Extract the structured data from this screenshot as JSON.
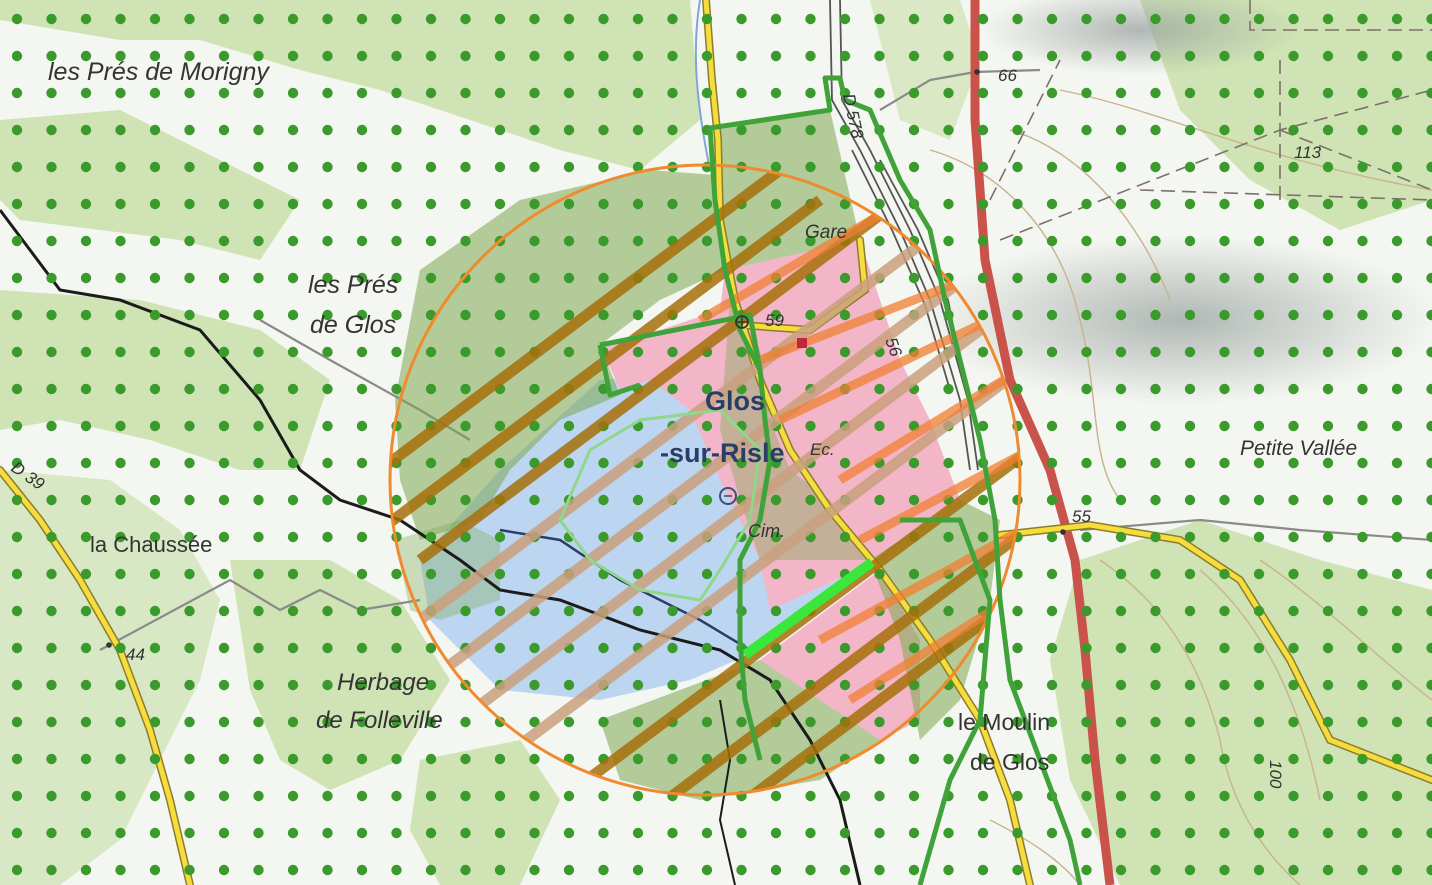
{
  "map": {
    "colors": {
      "background": "#f4f6f1",
      "forest": "#cfe3b4",
      "water_area": "#bcd6f2",
      "dot": "#3a9a2c",
      "zone_green": "#7ca84f",
      "zone_pink": "#f3b6c9",
      "circle_stroke": "#ef8a2e",
      "hatch_orange": "#f07f32",
      "hatch_brown": "#a6700b",
      "hatch_tan": "#c9a07e",
      "green_outline": "#3fa33a",
      "road_red": "#c9534a",
      "road_yellow": "#f6dc3c",
      "river": "#1b1b1b",
      "bright_green": "#39e83a"
    },
    "labels": {
      "pres_morigny": "les Prés de Morigny",
      "pres_glos_1": "les Prés",
      "pres_glos_2": "de Glos",
      "chaussee": "la Chaussée",
      "herbage_1": "Herbage",
      "herbage_2": "de Folleville",
      "petite_vallee": "Petite Vallée",
      "moulin_1": "le Moulin",
      "moulin_2": "de Glos",
      "glos_1": "Glos",
      "glos_2": "-sur-Risle",
      "gare": "Gare",
      "ec": "Ec.",
      "cim": "Cim.",
      "d39": "D 39",
      "d578": "D 578",
      "alt_66": "66",
      "alt_113": "113",
      "alt_55": "55",
      "alt_44": "44",
      "alt_100": "100",
      "alt_59": "59",
      "alt_56": "56"
    },
    "icons": [
      "church-icon",
      "monument-icon",
      "cemetery-icon"
    ]
  }
}
